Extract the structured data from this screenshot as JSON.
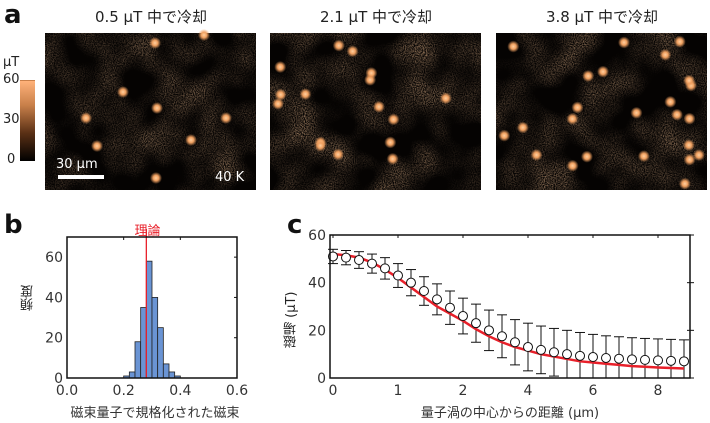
{
  "panel_labels": {
    "a": "a",
    "b": "b",
    "c": "c"
  },
  "panel_a": {
    "images": [
      {
        "title": "0.5 μT 中で冷却"
      },
      {
        "title": "2.1 μT 中で冷却"
      },
      {
        "title": "3.8 μT 中で冷却"
      }
    ],
    "scale_bar_label": "30 μm",
    "temperature_label": "40 K",
    "colorbar": {
      "unit": "μT",
      "ticks": [
        "60",
        "30",
        "0"
      ],
      "range": [
        0,
        60
      ],
      "colors": [
        "#000000",
        "#ffb27a"
      ]
    }
  },
  "chart_data": [
    {
      "type": "bar",
      "panel": "b",
      "xlabel": "磁束量子で規格化された磁束",
      "ylabel": "頻度",
      "xlim": [
        0.0,
        0.6
      ],
      "ylim": [
        0,
        70
      ],
      "xticks": [
        "0.0",
        "0.2",
        "0.4",
        "0.6"
      ],
      "yticks": [
        "0",
        "20",
        "40",
        "60"
      ],
      "bin_width": 0.02,
      "bin_starts": [
        0.2,
        0.22,
        0.24,
        0.26,
        0.28,
        0.3,
        0.32,
        0.34,
        0.36,
        0.38
      ],
      "values": [
        1,
        3,
        18,
        35,
        58,
        40,
        25,
        7,
        3,
        1
      ],
      "bar_color": "#6a94d4",
      "annotation": {
        "label": "理論",
        "x": 0.28,
        "color": "#e8202a"
      },
      "grid": false
    },
    {
      "type": "line",
      "panel": "c",
      "xlabel": "量子渦の中心からの距離 (μm)",
      "ylabel": "磁場 (μT)",
      "xticks": [
        "0",
        "1",
        "2",
        "4",
        "6",
        "8"
      ],
      "yticks": [
        "0",
        "20",
        "40",
        "60"
      ],
      "ylim": [
        0,
        60
      ],
      "grid": false,
      "x": [
        0,
        0.2,
        0.4,
        0.6,
        0.8,
        1.0,
        1.2,
        1.4,
        1.6,
        1.8,
        2.0,
        2.4,
        2.8,
        3.2,
        3.6,
        4.0,
        4.4,
        4.8,
        5.2,
        5.6,
        6.0,
        6.4,
        6.8,
        7.2,
        7.6,
        8.0,
        8.4,
        8.8
      ],
      "series": [
        {
          "kind": "markers",
          "values": [
            51,
            50.5,
            49.5,
            48,
            46,
            43,
            40,
            36.5,
            33,
            29.5,
            26,
            23,
            20,
            17.5,
            15,
            13,
            11.8,
            10.8,
            10,
            9.3,
            8.8,
            8.4,
            8.1,
            7.8,
            7.6,
            7.4,
            7.2,
            7
          ],
          "error": [
            3,
            3,
            3.5,
            4,
            4.5,
            5,
            5.5,
            6,
            6.5,
            7,
            7.5,
            8,
            8.5,
            9,
            9.5,
            10,
            10,
            10,
            10,
            9.8,
            9.5,
            9.3,
            9.2,
            9.1,
            9,
            9,
            9,
            9
          ]
        },
        {
          "kind": "fit",
          "color": "#e8202a",
          "values": [
            52,
            51.5,
            50.5,
            48.5,
            45.5,
            42,
            38,
            34,
            30,
            27,
            24,
            20.5,
            17.5,
            15,
            13,
            11.5,
            10,
            9,
            8,
            7,
            6.5,
            6,
            5.5,
            5,
            4.7,
            4.4,
            4.2,
            4
          ]
        }
      ]
    }
  ]
}
